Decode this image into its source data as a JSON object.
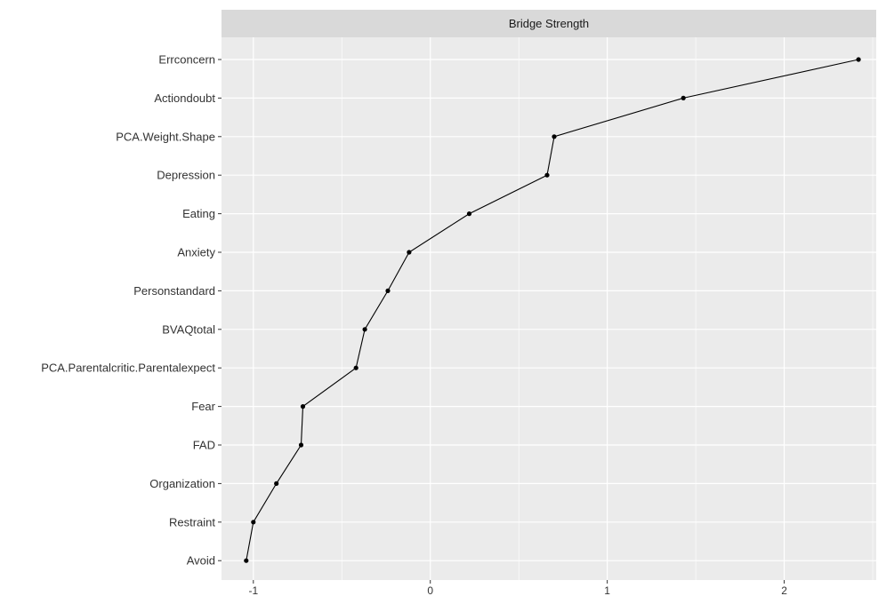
{
  "chart_data": {
    "type": "line",
    "panel_title": "Bridge Strength",
    "xlabel": "",
    "ylabel": "",
    "xlim": [
      -1.18,
      2.52
    ],
    "xticks": [
      -1,
      0,
      1,
      2
    ],
    "grid": true,
    "categories": [
      "Errconcern",
      "Actiondoubt",
      "PCA.Weight.Shape",
      "Depression",
      "Eating",
      "Anxiety",
      "Personstandard",
      "BVAQtotal",
      "PCA.Parentalcritic.Parentalexpect",
      "Fear",
      "FAD",
      "Organization",
      "Restraint",
      "Avoid"
    ],
    "values": [
      2.42,
      1.43,
      0.7,
      0.66,
      0.22,
      -0.12,
      -0.24,
      -0.37,
      -0.42,
      -0.72,
      -0.73,
      -0.87,
      -1.0,
      -1.04
    ],
    "colors": {
      "panel": "#ebebeb",
      "strip": "#d9d9d9",
      "grid": "#ffffff",
      "line": "#000000",
      "point": "#000000"
    }
  }
}
